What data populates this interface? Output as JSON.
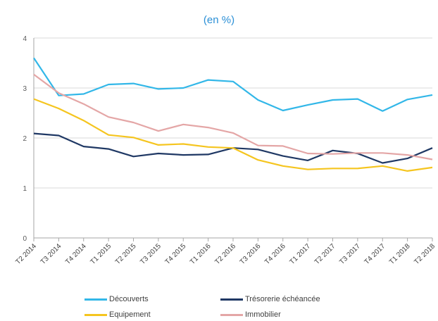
{
  "chart_data": {
    "type": "line",
    "subtitle": "(en %)",
    "title": "",
    "xlabel": "",
    "ylabel": "",
    "ylim": [
      0,
      4
    ],
    "yticks": [
      0,
      1,
      2,
      3,
      4
    ],
    "grid": "horizontal",
    "legend_placement": "bottom",
    "categories": [
      "T2 2014",
      "T3 2014",
      "T4 2014",
      "T1 2015",
      "T2 2015",
      "T3 2015",
      "T4 2015",
      "T1 2016",
      "T2 2016",
      "T3 2016",
      "T4 2016",
      "T1 2017",
      "T2 2017",
      "T3 2017",
      "T4 2017",
      "T1 2018",
      "T2 2018"
    ],
    "series": [
      {
        "name": "Découverts",
        "color": "#32b7e8",
        "values": [
          3.6,
          2.85,
          2.88,
          3.07,
          3.09,
          2.98,
          3.0,
          3.16,
          3.13,
          2.76,
          2.55,
          2.66,
          2.76,
          2.78,
          2.54,
          2.77,
          2.86
        ]
      },
      {
        "name": "Trésorerie échéancée",
        "color": "#1f3864",
        "values": [
          2.09,
          2.05,
          1.83,
          1.78,
          1.63,
          1.69,
          1.66,
          1.67,
          1.8,
          1.77,
          1.64,
          1.55,
          1.75,
          1.69,
          1.5,
          1.59,
          1.8
        ]
      },
      {
        "name": "Equipement",
        "color": "#f5c51f",
        "values": [
          2.78,
          2.59,
          2.35,
          2.06,
          2.01,
          1.86,
          1.88,
          1.82,
          1.8,
          1.56,
          1.44,
          1.37,
          1.39,
          1.39,
          1.44,
          1.34,
          1.41
        ]
      },
      {
        "name": "Immobilier",
        "color": "#e4a6a6",
        "values": [
          3.27,
          2.9,
          2.68,
          2.42,
          2.31,
          2.14,
          2.27,
          2.21,
          2.1,
          1.85,
          1.84,
          1.69,
          1.68,
          1.7,
          1.7,
          1.66,
          1.57
        ]
      }
    ]
  }
}
